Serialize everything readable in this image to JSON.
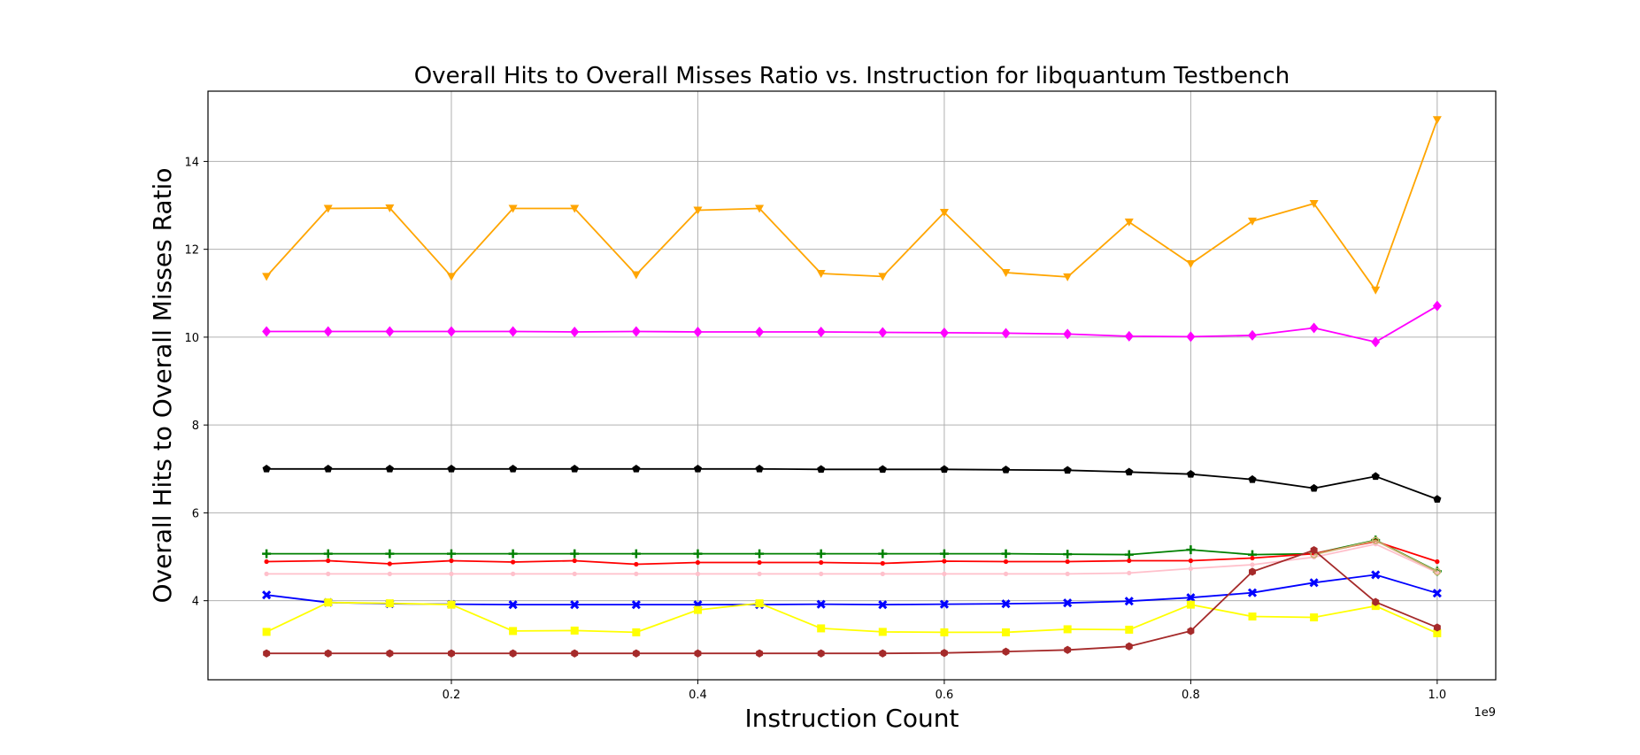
{
  "chart_data": {
    "type": "line",
    "title": "Overall Hits to Overall Misses Ratio vs. Instruction for libquantum Testbench",
    "xlabel": "Instruction Count",
    "ylabel": "Overall Hits to Overall Misses Ratio",
    "x_offset_label": "1e9",
    "xlim": [
      0.0025,
      1.0475
    ],
    "ylim": [
      2.2,
      15.6
    ],
    "grid": true,
    "x_ticks": [
      0.2,
      0.4,
      0.6,
      0.8,
      1.0
    ],
    "x_tick_labels": [
      "0.2",
      "0.4",
      "0.6",
      "0.8",
      "1.0"
    ],
    "y_ticks": [
      4,
      6,
      8,
      10,
      12,
      14
    ],
    "y_tick_labels": [
      "4",
      "6",
      "8",
      "10",
      "12",
      "14"
    ],
    "x": [
      0.05,
      0.1,
      0.15,
      0.2,
      0.25,
      0.3,
      0.35,
      0.4,
      0.45,
      0.5,
      0.55,
      0.6,
      0.65,
      0.7,
      0.75,
      0.8,
      0.85,
      0.9,
      0.95,
      1.0
    ],
    "series": [
      {
        "color": "#ffa500",
        "marker": "triangle-down",
        "values": [
          11.38,
          12.93,
          12.94,
          11.38,
          12.93,
          12.93,
          11.42,
          12.89,
          12.93,
          11.45,
          11.38,
          12.84,
          11.47,
          11.37,
          12.62,
          11.67,
          12.64,
          13.04,
          11.07,
          14.95
        ]
      },
      {
        "color": "#ff00ff",
        "marker": "diamond",
        "values": [
          10.13,
          10.13,
          10.13,
          10.13,
          10.13,
          10.12,
          10.13,
          10.12,
          10.12,
          10.12,
          10.11,
          10.1,
          10.09,
          10.07,
          10.02,
          10.01,
          10.04,
          10.21,
          9.89,
          10.71
        ]
      },
      {
        "color": "#000000",
        "marker": "pentagon",
        "values": [
          7.0,
          7.0,
          7.0,
          7.0,
          7.0,
          7.0,
          7.0,
          7.0,
          7.0,
          6.99,
          6.99,
          6.99,
          6.98,
          6.97,
          6.93,
          6.88,
          6.76,
          6.56,
          6.83,
          6.31
        ]
      },
      {
        "color": "#008000",
        "marker": "plus",
        "values": [
          5.07,
          5.07,
          5.07,
          5.07,
          5.07,
          5.07,
          5.07,
          5.07,
          5.07,
          5.07,
          5.07,
          5.07,
          5.07,
          5.06,
          5.05,
          5.16,
          5.05,
          5.07,
          5.38,
          4.67
        ]
      },
      {
        "color": "#ff0000",
        "marker": "point",
        "values": [
          4.89,
          4.91,
          4.84,
          4.91,
          4.88,
          4.91,
          4.83,
          4.87,
          4.87,
          4.87,
          4.85,
          4.9,
          4.89,
          4.89,
          4.91,
          4.91,
          4.97,
          5.07,
          5.35,
          4.89
        ]
      },
      {
        "color": "#ffc0cb",
        "marker": "point",
        "values": [
          4.61,
          4.61,
          4.61,
          4.61,
          4.61,
          4.61,
          4.61,
          4.61,
          4.61,
          4.61,
          4.61,
          4.61,
          4.61,
          4.61,
          4.63,
          4.73,
          4.82,
          4.99,
          5.29,
          4.64
        ]
      },
      {
        "color": "#c8b070",
        "marker": "circle-open",
        "values": [
          null,
          null,
          null,
          null,
          null,
          null,
          null,
          null,
          null,
          null,
          null,
          null,
          null,
          null,
          null,
          null,
          null,
          5.05,
          5.37,
          4.66
        ]
      },
      {
        "color": "#0000ff",
        "marker": "x",
        "values": [
          4.13,
          3.96,
          3.93,
          3.92,
          3.91,
          3.91,
          3.91,
          3.91,
          3.91,
          3.92,
          3.91,
          3.92,
          3.93,
          3.95,
          3.99,
          4.07,
          4.18,
          4.41,
          4.59,
          4.17
        ]
      },
      {
        "color": "#ffff00",
        "marker": "square",
        "values": [
          3.29,
          3.96,
          3.94,
          3.91,
          3.31,
          3.32,
          3.28,
          3.79,
          3.94,
          3.37,
          3.29,
          3.28,
          3.28,
          3.35,
          3.34,
          3.91,
          3.64,
          3.62,
          3.88,
          3.26
        ]
      },
      {
        "color": "#a52a2a",
        "marker": "hexagon",
        "values": [
          2.8,
          2.8,
          2.8,
          2.8,
          2.8,
          2.8,
          2.8,
          2.8,
          2.8,
          2.8,
          2.8,
          2.81,
          2.84,
          2.88,
          2.96,
          3.31,
          4.66,
          5.15,
          3.97,
          3.39
        ]
      }
    ]
  }
}
